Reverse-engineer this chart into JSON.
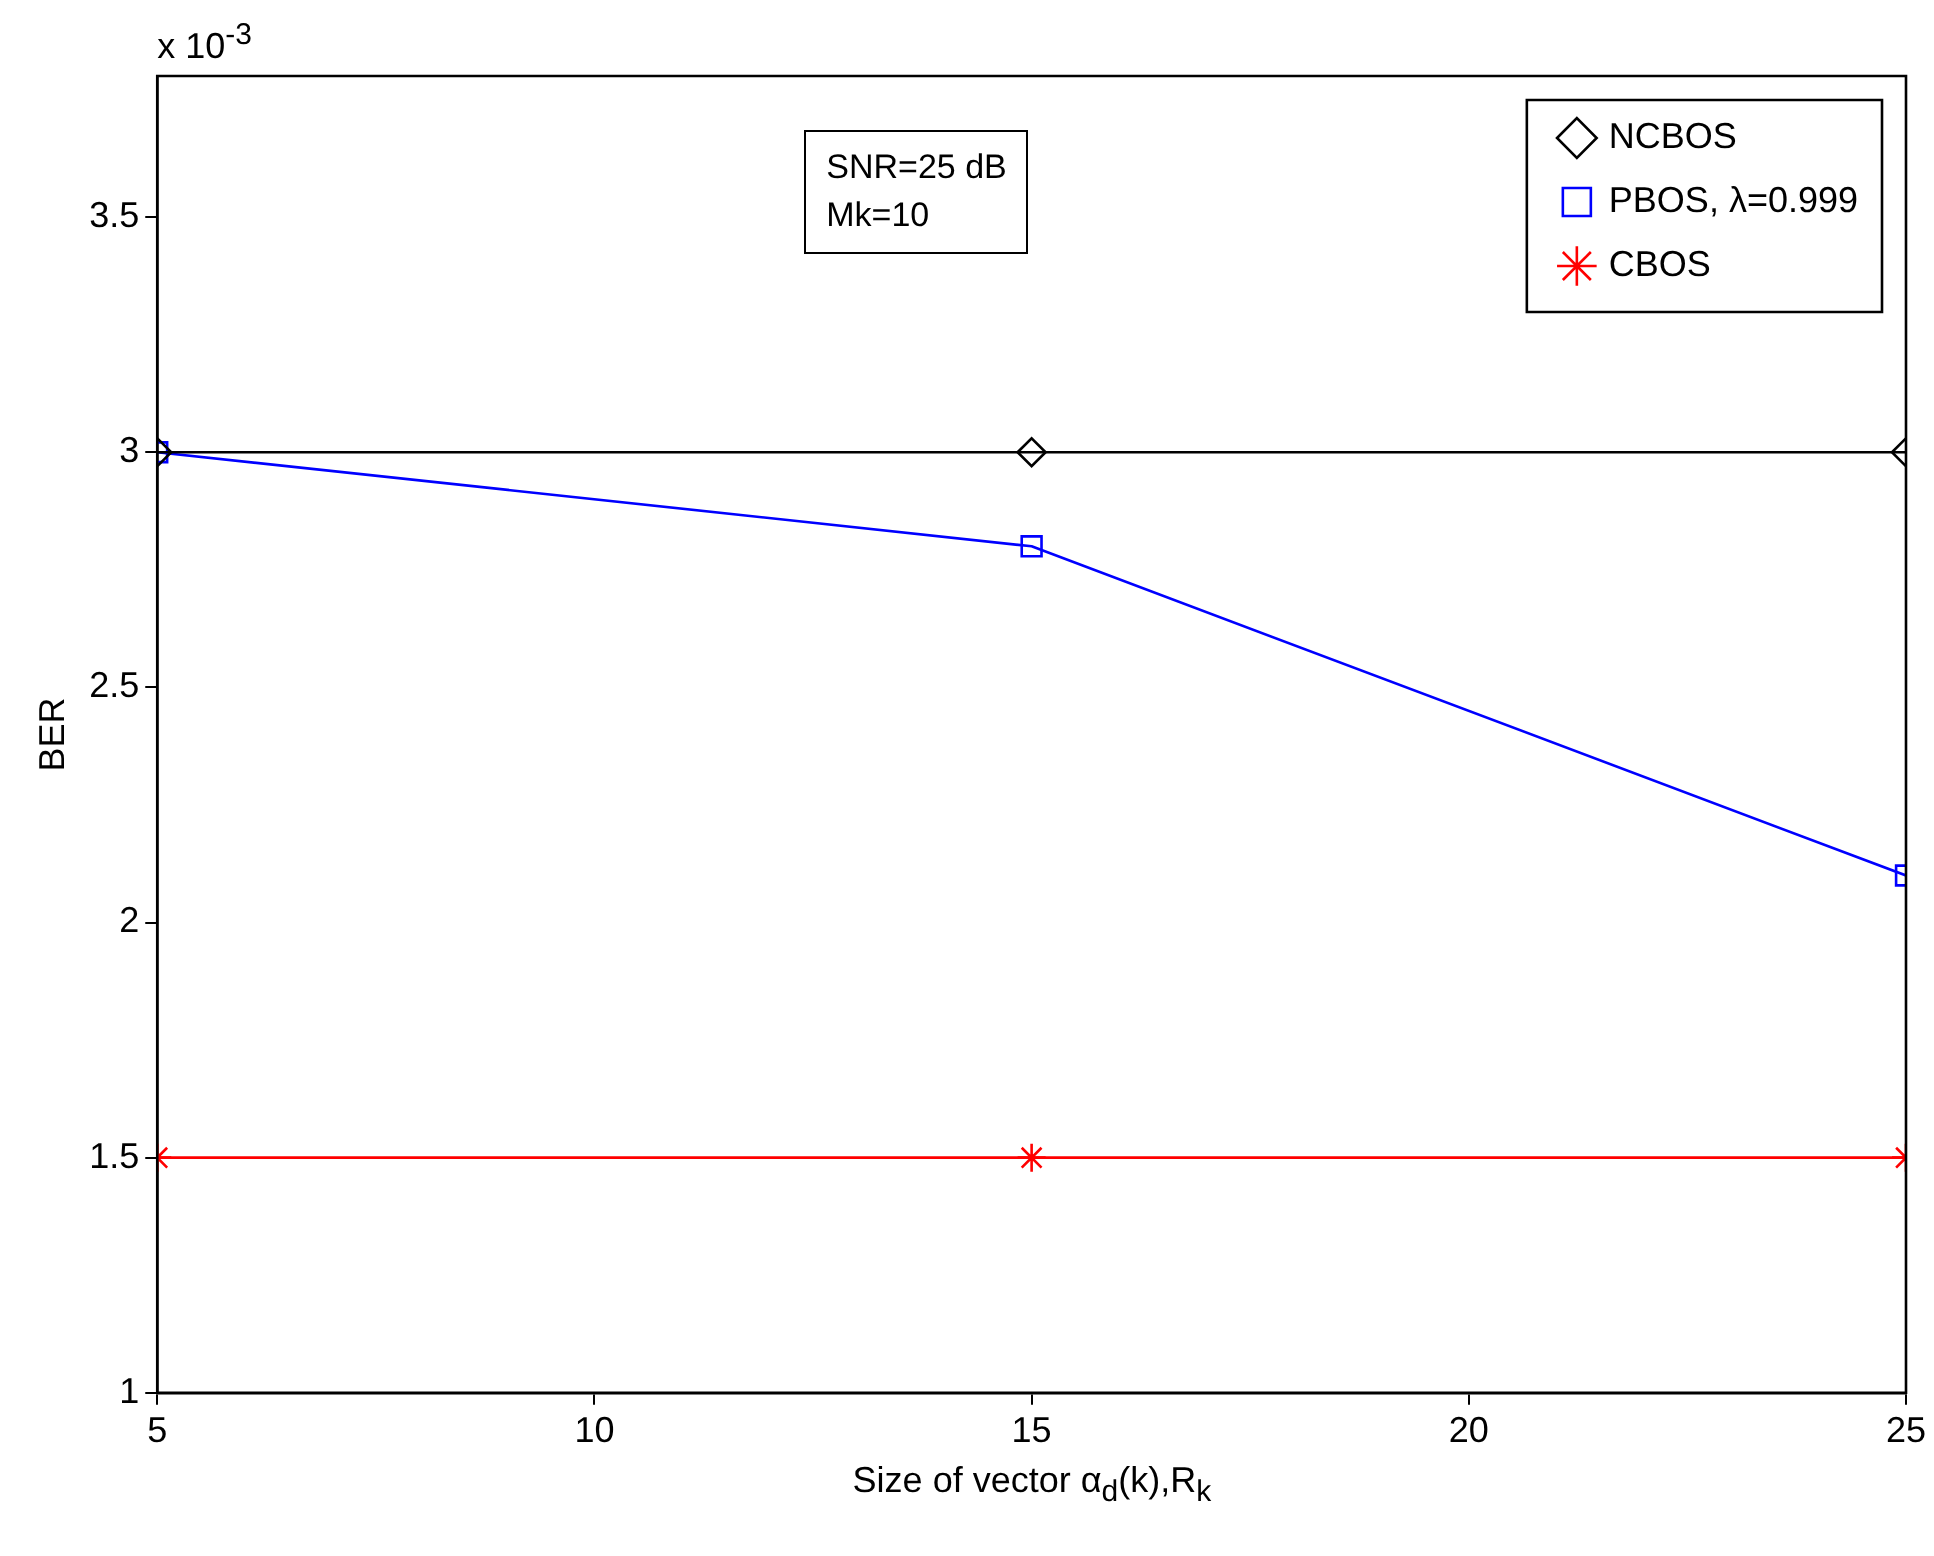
{
  "chart_data": {
    "type": "line",
    "xlabel": "Size of vector α$_{d}$(k),R$_{k}$",
    "ylabel": "BER",
    "x": [
      5,
      15,
      25
    ],
    "series": [
      {
        "name": "NCBOS",
        "color": "#000000",
        "marker": "diamond",
        "values": [
          3,
          3,
          3
        ]
      },
      {
        "name": "PBOS, λ=0.999",
        "color": "#0000ff",
        "marker": "square",
        "values": [
          3,
          2.8,
          2.1
        ]
      },
      {
        "name": "CBOS",
        "color": "#ff0000",
        "marker": "cross",
        "values": [
          1.5,
          1.5,
          1.5
        ]
      }
    ],
    "xlim": [
      5,
      25
    ],
    "xticks": [
      5,
      10,
      15,
      20,
      25
    ],
    "ylim": [
      1,
      3.8
    ],
    "yticks": [
      1,
      1.5,
      2,
      2.5,
      3,
      3.5
    ],
    "grid": false,
    "legend": "top right",
    "line_style": "solid",
    "annotations": [
      "x 10$^{-3}$",
      "SNR=25 dB",
      "Mk=10"
    ]
  }
}
